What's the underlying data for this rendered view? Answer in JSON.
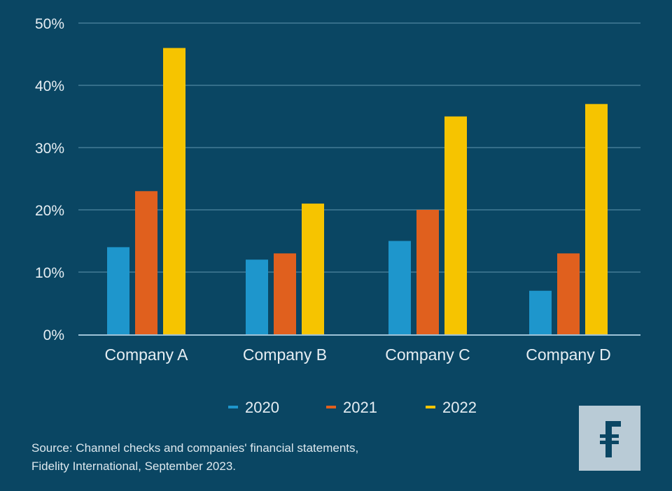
{
  "chart_data": {
    "type": "bar",
    "title": "",
    "xlabel": "",
    "ylabel": "",
    "categories": [
      "Company A",
      "Company B",
      "Company C",
      "Company D"
    ],
    "series": [
      {
        "name": "2020",
        "color": "#1e96cc",
        "values": [
          14,
          12,
          15,
          7
        ]
      },
      {
        "name": "2021",
        "color": "#e0601e",
        "values": [
          23,
          13,
          20,
          13
        ]
      },
      {
        "name": "2022",
        "color": "#f6c400",
        "values": [
          46,
          21,
          35,
          37
        ]
      }
    ],
    "ylim": [
      0,
      50
    ],
    "yticks": [
      0,
      10,
      20,
      30,
      40,
      50
    ],
    "ytick_labels": [
      "0%",
      "10%",
      "20%",
      "30%",
      "40%",
      "50%"
    ],
    "grid": true,
    "legend_position": "bottom-center"
  },
  "source": {
    "line1": "Source: Channel checks and companies' financial statements,",
    "line2": "Fidelity International, September 2023."
  },
  "logo": {
    "glyph": "₣",
    "icon": "fidelity-logo-icon"
  },
  "colors": {
    "background": "#0a4663",
    "grid": "#4f87a0",
    "axis": "#9fc3d8",
    "text": "#e6eef3"
  }
}
